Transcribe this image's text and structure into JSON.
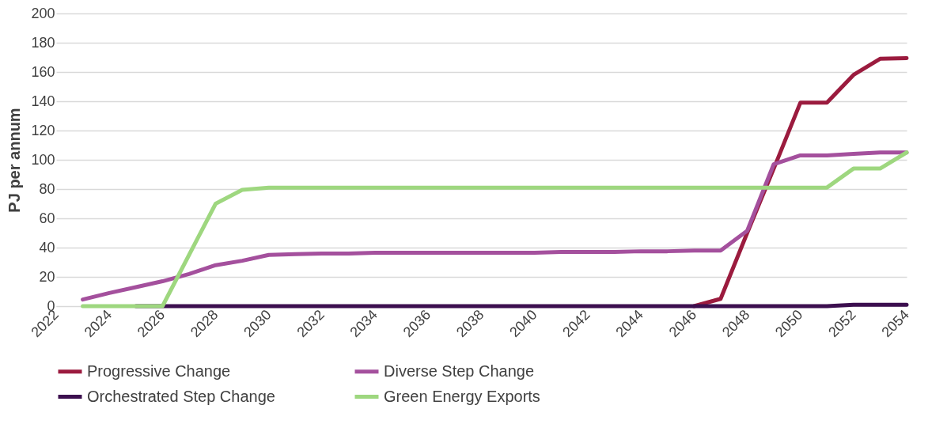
{
  "chart_data": {
    "type": "line",
    "ylabel": "PJ per annum",
    "x": [
      2023,
      2024,
      2025,
      2026,
      2027,
      2028,
      2029,
      2030,
      2031,
      2032,
      2033,
      2034,
      2035,
      2036,
      2037,
      2038,
      2039,
      2040,
      2041,
      2042,
      2043,
      2044,
      2045,
      2046,
      2047,
      2048,
      2049,
      2050,
      2051,
      2052,
      2053,
      2054
    ],
    "xlim": [
      2022,
      2054
    ],
    "xticks": [
      2022,
      2024,
      2026,
      2028,
      2030,
      2032,
      2034,
      2036,
      2038,
      2040,
      2042,
      2044,
      2046,
      2048,
      2050,
      2052,
      2054
    ],
    "ylim": [
      0,
      200
    ],
    "yticks": [
      0,
      20,
      40,
      60,
      80,
      100,
      120,
      140,
      160,
      180,
      200
    ],
    "grid": "y",
    "legend": "bottom",
    "marker": "none",
    "line_style": "solid",
    "series": [
      {
        "name": "Progressive Change",
        "color": "#9b1b3e",
        "values": [
          null,
          null,
          null,
          null,
          null,
          null,
          null,
          null,
          null,
          null,
          null,
          null,
          null,
          null,
          null,
          null,
          null,
          null,
          null,
          null,
          null,
          null,
          null,
          0,
          5,
          50,
          94,
          139,
          139,
          158,
          169,
          169.5
        ]
      },
      {
        "name": "Diverse Step Change",
        "color": "#a4509d",
        "values": [
          4.5,
          9,
          13,
          17,
          22,
          28,
          31,
          35,
          35.5,
          36,
          36,
          36.5,
          36.5,
          36.5,
          36.5,
          36.5,
          36.5,
          36.5,
          37,
          37,
          37,
          37.5,
          37.5,
          38,
          38,
          51.5,
          97,
          103,
          103,
          104,
          105,
          105
        ]
      },
      {
        "name": "Orchestrated Step Change",
        "color": "#3c0f4f",
        "values": [
          null,
          null,
          0,
          0,
          0,
          0,
          0,
          0,
          0,
          0,
          0,
          0,
          0,
          0,
          0,
          0,
          0,
          0,
          0,
          0,
          0,
          0,
          0,
          0,
          0,
          0,
          0,
          0,
          0,
          1,
          1,
          1
        ]
      },
      {
        "name": "Green Energy Exports",
        "color": "#9ed77f",
        "values": [
          0,
          0,
          0,
          0,
          35,
          70,
          79.5,
          81,
          81,
          81,
          81,
          81,
          81,
          81,
          81,
          81,
          81,
          81,
          81,
          81,
          81,
          81,
          81,
          81,
          81,
          81,
          81,
          81,
          81,
          94,
          94,
          105
        ]
      }
    ]
  }
}
